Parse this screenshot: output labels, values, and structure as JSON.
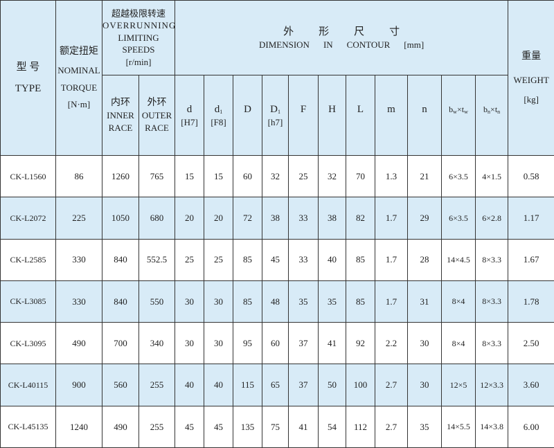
{
  "header": {
    "type_zh": "型 号",
    "type_en": "TYPE",
    "torque_zh": "额定扭矩",
    "torque_en1": "NOMINAL",
    "torque_en2": "TORQUE",
    "torque_unit": "[N·m]",
    "speed_zh": "超越极限转速",
    "speed_en1": "OVERRUNNING",
    "speed_en2": "LIMITING SPEEDS",
    "speed_unit": "[r/min]",
    "inner_zh": "内环",
    "inner_en1": "INNER",
    "inner_en2": "RACE",
    "outer_zh": "外环",
    "outer_en1": "OUTER",
    "outer_en2": "RACE",
    "dim_zh": [
      "外",
      "形",
      "尺",
      "寸"
    ],
    "dim_en": [
      "DIMENSION",
      "IN",
      "CONTOUR",
      "[mm]"
    ],
    "weight_zh": "重量",
    "weight_en": "WEIGHT",
    "weight_unit": "[kg]",
    "cols": {
      "d": "d",
      "d_tol": "[H7]",
      "d1": "d",
      "d1_sub": "1",
      "d1_tol": "[F8]",
      "D": "D",
      "D1": "D",
      "D1_sub": "1",
      "D1_tol": "[h7]",
      "F": "F",
      "H": "H",
      "L": "L",
      "m": "m",
      "n": "n",
      "bw": "b",
      "bw_sub": "w",
      "bw_x": "×",
      "tw": "t",
      "tw_sub": "w",
      "bn": "b",
      "bn_sub": "n",
      "bn_x": "×",
      "tn": "t",
      "tn_sub": "n"
    }
  },
  "rows": [
    [
      "CK-L1560",
      "86",
      "1260",
      "765",
      "15",
      "15",
      "60",
      "32",
      "25",
      "32",
      "70",
      "1.3",
      "21",
      "6×3.5",
      "4×1.5",
      "0.58"
    ],
    [
      "CK-L2072",
      "225",
      "1050",
      "680",
      "20",
      "20",
      "72",
      "38",
      "33",
      "38",
      "82",
      "1.7",
      "29",
      "6×3.5",
      "6×2.8",
      "1.17"
    ],
    [
      "CK-L2585",
      "330",
      "840",
      "552.5",
      "25",
      "25",
      "85",
      "45",
      "33",
      "40",
      "85",
      "1.7",
      "28",
      "14×4.5",
      "8×3.3",
      "1.67"
    ],
    [
      "CK-L3085",
      "330",
      "840",
      "550",
      "30",
      "30",
      "85",
      "48",
      "35",
      "35",
      "85",
      "1.7",
      "31",
      "8×4",
      "8×3.3",
      "1.78"
    ],
    [
      "CK-L3095",
      "490",
      "700",
      "340",
      "30",
      "30",
      "95",
      "60",
      "37",
      "41",
      "92",
      "2.2",
      "30",
      "8×4",
      "8×3.3",
      "2.50"
    ],
    [
      "CK-L40115",
      "900",
      "560",
      "255",
      "40",
      "40",
      "115",
      "65",
      "37",
      "50",
      "100",
      "2.7",
      "30",
      "12×5",
      "12×3.3",
      "3.60"
    ],
    [
      "CK-L45135",
      "1240",
      "490",
      "255",
      "45",
      "45",
      "135",
      "75",
      "41",
      "54",
      "112",
      "2.7",
      "35",
      "14×5.5",
      "14×3.8",
      "6.00"
    ]
  ],
  "colors": {
    "header_bg": "#d8ebf7",
    "alt_row_bg": "#d8ebf7",
    "border": "#333333"
  }
}
